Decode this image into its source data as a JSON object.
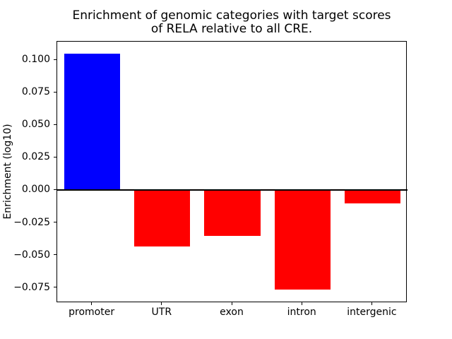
{
  "chart_data": {
    "type": "bar",
    "title": "Enrichment of genomic categories with target scores\nof RELA relative to all CRE.",
    "xlabel": "",
    "ylabel": "Enrichment (log10)",
    "categories": [
      "promoter",
      "UTR",
      "exon",
      "intron",
      "intergenic"
    ],
    "values": [
      0.105,
      -0.043,
      -0.035,
      -0.076,
      -0.01
    ],
    "bar_colors": [
      "#0000ff",
      "#ff0000",
      "#ff0000",
      "#ff0000",
      "#ff0000"
    ],
    "bar_width_fraction": 0.8,
    "ylim": [
      -0.0865,
      0.1141
    ],
    "yticks": [
      0.1,
      0.075,
      0.05,
      0.025,
      0.0,
      -0.025,
      -0.05,
      -0.075
    ],
    "ytick_labels": [
      "0.100",
      "0.075",
      "0.050",
      "0.025",
      "0.000",
      "−0.025",
      "−0.050",
      "−0.075"
    ],
    "grid": false,
    "legend": null,
    "zero_line": true,
    "frame_color": "#000000",
    "background_color": "#ffffff"
  }
}
